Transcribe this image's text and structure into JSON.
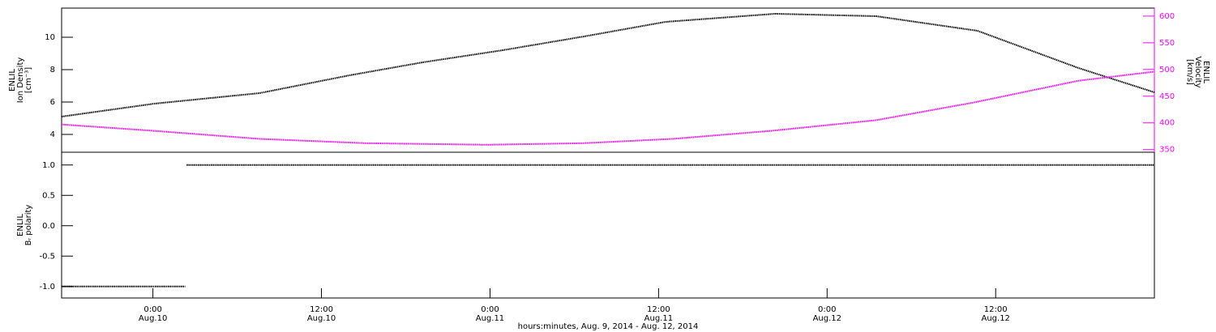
{
  "chart_data": [
    {
      "type": "line",
      "ylabel": [
        "ENLIL",
        "Ion Density",
        "[cm⁻³]"
      ],
      "y2label": [
        "ENLIL",
        "Velocity",
        "[km/s]"
      ],
      "xlim": [
        17.5,
        95.3
      ],
      "ylim": [
        2.9,
        11.8
      ],
      "yticks": [
        4,
        6,
        8,
        10
      ],
      "y2lim": [
        345,
        615
      ],
      "y2ticks": [
        350,
        400,
        450,
        500,
        550,
        600
      ],
      "y2color": "#ff00ff",
      "series": [
        {
          "name": "Ion Density",
          "color": "#000000",
          "x": [
            17.5,
            24.1,
            31.6,
            38.0,
            43.2,
            48.9,
            54.7,
            60.5,
            68.3,
            75.5,
            82.7,
            89.9,
            95.3
          ],
          "values": [
            5.1,
            5.9,
            6.55,
            7.65,
            8.45,
            9.2,
            10.05,
            10.95,
            11.45,
            11.3,
            10.4,
            8.1,
            6.6
          ]
        },
        {
          "name": "Velocity",
          "color": "#ff00ff",
          "axis": "y2",
          "x": [
            17.5,
            24.1,
            31.6,
            39.1,
            47.8,
            54.7,
            61.0,
            68.0,
            75.5,
            82.4,
            89.9,
            95.3
          ],
          "values": [
            397,
            385,
            370,
            362,
            359,
            362,
            370,
            385,
            405,
            438,
            479,
            496
          ]
        }
      ]
    },
    {
      "type": "line",
      "ylabel": [
        "ENLIL",
        "Bᵣ polarity"
      ],
      "xlabel": "hours:minutes, Aug.  9, 2014 - Aug. 12, 2014",
      "xlim": [
        17.5,
        95.3
      ],
      "xticks": [
        {
          "value": 24,
          "label": "0:00"
        },
        {
          "value": 36,
          "label": "12:00"
        },
        {
          "value": 48,
          "label": "0:00"
        },
        {
          "value": 60,
          "label": "12:00"
        },
        {
          "value": 72,
          "label": "0:00"
        },
        {
          "value": 84,
          "label": "12:00"
        }
      ],
      "xtick_dates": [
        "Aug.10",
        "Aug.10",
        "Aug.11",
        "Aug.11",
        "Aug.12",
        "Aug.12"
      ],
      "ylim": [
        -1.19,
        1.21
      ],
      "yticks": [
        {
          "value": -1,
          "label": "-1.0"
        },
        {
          "value": -0.5,
          "label": "-0.5"
        },
        {
          "value": 0,
          "label": "0.0"
        },
        {
          "value": 0.5,
          "label": "0.5"
        },
        {
          "value": 1,
          "label": "1.0"
        }
      ],
      "series": [
        {
          "name": "Br polarity",
          "color": "#000000",
          "x": [
            17.5,
            26.3,
            26.35,
            26.4,
            95.3
          ],
          "values": [
            -1,
            -1,
            null,
            1,
            1
          ]
        }
      ]
    }
  ]
}
